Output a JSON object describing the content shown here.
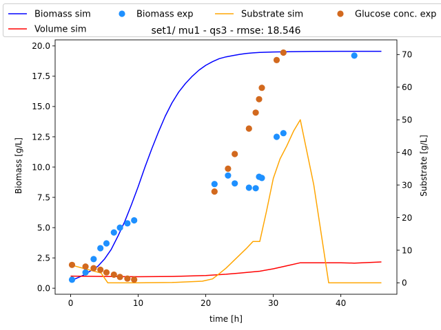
{
  "chart_data": {
    "type": "line",
    "title": "set1/ mu1 - qs3 - rmse: 18.546",
    "xlabel": "time [h]",
    "ylabel": "Biomass [g/L]",
    "y2label": "Substrate [g/L]",
    "xlim": [
      -2.3,
      48.3
    ],
    "ylim": [
      -0.5,
      20.5
    ],
    "y2lim": [
      -3.5,
      74.5
    ],
    "xticks": [
      "0",
      "10",
      "20",
      "30",
      "40"
    ],
    "xtick_values": [
      0,
      10,
      20,
      30,
      40
    ],
    "yticks": [
      "0.0",
      "2.5",
      "5.0",
      "7.5",
      "10.0",
      "12.5",
      "15.0",
      "17.5",
      "20.0"
    ],
    "ytick_values": [
      0,
      2.5,
      5,
      7.5,
      10,
      12.5,
      15,
      17.5,
      20
    ],
    "y2ticks": [
      "0",
      "10",
      "20",
      "30",
      "40",
      "50",
      "60",
      "70"
    ],
    "y2tick_values": [
      0,
      10,
      20,
      30,
      40,
      50,
      60,
      70
    ],
    "grid": false,
    "legend_placement": "top",
    "legend": [
      {
        "label": "Biomass sim",
        "kind": "line",
        "color": "#0000ff"
      },
      {
        "label": "Volume sim",
        "kind": "line",
        "color": "#ff0000"
      },
      {
        "label": "Biomass exp",
        "kind": "marker",
        "color": "#1e90ff"
      },
      {
        "label": "Substrate sim",
        "kind": "line",
        "color": "#ffa500"
      },
      {
        "label": "Glucose conc. exp",
        "kind": "marker",
        "color": "#d2691e"
      }
    ],
    "series": [
      {
        "name": "Biomass sim",
        "kind": "line",
        "axis": "left",
        "color": "#0000ff",
        "x": [
          0,
          2,
          4,
          5,
          6,
          7,
          8,
          9,
          10,
          11,
          12,
          13,
          14,
          15,
          16,
          17,
          18,
          19,
          20,
          21,
          22,
          23,
          24,
          25,
          26,
          27,
          28,
          30,
          33,
          36,
          40,
          46
        ],
        "y": [
          0.6,
          1.1,
          1.8,
          2.4,
          3.2,
          4.3,
          5.5,
          6.9,
          8.4,
          10.0,
          11.5,
          12.9,
          14.2,
          15.3,
          16.2,
          16.9,
          17.5,
          18.0,
          18.4,
          18.7,
          18.95,
          19.1,
          19.2,
          19.3,
          19.38,
          19.43,
          19.46,
          19.5,
          19.53,
          19.55,
          19.56,
          19.56
        ]
      },
      {
        "name": "Volume sim",
        "kind": "line",
        "axis": "left",
        "color": "#ff0000",
        "x": [
          0,
          5,
          10,
          15,
          20,
          23,
          25,
          28,
          30,
          32,
          34,
          36,
          40,
          42,
          46
        ],
        "y": [
          1.0,
          0.97,
          0.95,
          0.97,
          1.05,
          1.15,
          1.25,
          1.4,
          1.6,
          1.85,
          2.1,
          2.1,
          2.1,
          2.07,
          2.17
        ]
      },
      {
        "name": "Biomass exp",
        "kind": "scatter",
        "axis": "left",
        "color": "#1e90ff",
        "x": [
          0.2,
          2.2,
          3.4,
          4.4,
          5.3,
          6.4,
          7.3,
          8.4,
          9.4,
          21.3,
          23.3,
          24.3,
          26.4,
          27.4,
          27.9,
          28.3,
          30.5,
          31.5,
          42.0
        ],
        "y": [
          0.7,
          1.3,
          2.4,
          3.3,
          3.7,
          4.6,
          5.0,
          5.35,
          5.6,
          8.6,
          9.3,
          8.65,
          8.3,
          8.25,
          9.2,
          9.1,
          12.5,
          12.8,
          19.2
        ]
      },
      {
        "name": "Substrate sim",
        "kind": "line",
        "axis": "right",
        "color": "#ffa500",
        "x": [
          0,
          4.5,
          5.5,
          10,
          15,
          19.5,
          21,
          22,
          23,
          24,
          25,
          26,
          27,
          28,
          29,
          30,
          31,
          32,
          33,
          34,
          36,
          38.2,
          40,
          46
        ],
        "y": [
          5.5,
          3,
          0,
          0,
          0.1,
          0.5,
          1.2,
          2.8,
          4.5,
          6.5,
          8.5,
          10.5,
          12.7,
          12.7,
          22,
          32,
          38,
          42,
          46.5,
          50,
          30,
          0,
          0,
          0
        ]
      },
      {
        "name": "Glucose conc. exp",
        "kind": "scatter",
        "axis": "right",
        "color": "#d2691e",
        "x": [
          0.2,
          2.2,
          3.4,
          4.4,
          5.3,
          6.4,
          7.3,
          8.4,
          9.4,
          21.3,
          23.3,
          24.3,
          26.4,
          27.4,
          27.9,
          28.3,
          30.5,
          31.5
        ],
        "y": [
          5.5,
          5.0,
          4.5,
          4.0,
          3.2,
          2.5,
          1.8,
          1.3,
          1.0,
          28,
          35,
          39.5,
          47.3,
          52.2,
          56.3,
          59.8,
          68.3,
          70.6
        ]
      }
    ]
  }
}
